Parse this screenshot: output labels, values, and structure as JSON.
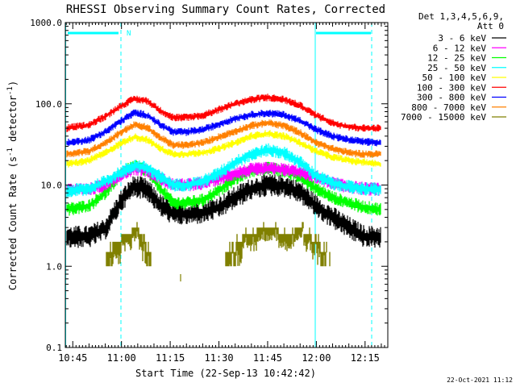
{
  "chart_data": {
    "type": "line",
    "title": "RHESSI Observing Summary Count Rates, Corrected",
    "xlabel": "Start Time (22-Sep-13 10:42:42)",
    "ylabel": "Corrected Count Rate (s⁻¹ detector⁻¹)",
    "yscale": "log",
    "ylim": [
      0.1,
      1000
    ],
    "xlim": [
      "10:42:42",
      "12:22:00"
    ],
    "x_ticks": [
      "10:45",
      "11:00",
      "11:15",
      "11:30",
      "11:45",
      "12:00",
      "12:15"
    ],
    "y_ticks": [
      "0.1",
      "1.0",
      "10.0",
      "100.0",
      "1000.0"
    ],
    "legend_header": [
      "Det 1,3,4,5,6,9,",
      "Att 0"
    ],
    "legend_position": "right",
    "flag_marker": "N",
    "series": [
      {
        "name": "3 - 6 keV",
        "color": "#000000",
        "x": [
          "10:43",
          "10:50",
          "10:55",
          "11:00",
          "11:04",
          "11:08",
          "11:12",
          "11:16",
          "11:20",
          "11:25",
          "11:30",
          "11:35",
          "11:40",
          "11:45",
          "11:50",
          "11:55",
          "12:00",
          "12:05",
          "12:10",
          "12:15",
          "12:20"
        ],
        "values": [
          2.3,
          2.3,
          2.9,
          6.5,
          9.8,
          8.7,
          5.6,
          4.4,
          4.4,
          4.6,
          5.3,
          7.0,
          9.0,
          10.0,
          9.8,
          8.2,
          5.5,
          4.0,
          3.0,
          2.3,
          2.3
        ]
      },
      {
        "name": "6 - 12 keV",
        "color": "#ff00ff",
        "x": [
          "10:43",
          "10:50",
          "10:55",
          "11:00",
          "11:04",
          "11:08",
          "11:12",
          "11:16",
          "11:20",
          "11:25",
          "11:30",
          "11:35",
          "11:40",
          "11:45",
          "11:50",
          "11:55",
          "12:00",
          "12:05",
          "12:10",
          "12:15",
          "12:20"
        ],
        "values": [
          8.8,
          8.8,
          10.0,
          13.5,
          16.0,
          15.0,
          12.0,
          10.0,
          10.0,
          10.5,
          12.0,
          14.0,
          15.5,
          16.0,
          15.5,
          14.5,
          12.5,
          10.5,
          9.5,
          9.0,
          8.8
        ]
      },
      {
        "name": "12 - 25 keV",
        "color": "#00ff00",
        "x": [
          "10:43",
          "10:50",
          "10:55",
          "11:00",
          "11:04",
          "11:08",
          "11:12",
          "11:16",
          "11:20",
          "11:25",
          "11:30",
          "11:35",
          "11:40",
          "11:45",
          "11:50",
          "11:55",
          "12:00",
          "12:05",
          "12:10",
          "12:15",
          "12:20"
        ],
        "values": [
          5.0,
          5.5,
          8.0,
          14.0,
          17.0,
          15.0,
          9.0,
          6.0,
          6.0,
          6.5,
          8.5,
          12.0,
          15.0,
          16.0,
          15.0,
          12.5,
          9.0,
          7.0,
          6.0,
          5.3,
          5.0
        ]
      },
      {
        "name": "25 - 50 keV",
        "color": "#00ffff",
        "x": [
          "10:43",
          "10:50",
          "10:55",
          "11:00",
          "11:04",
          "11:08",
          "11:12",
          "11:16",
          "11:20",
          "11:25",
          "11:30",
          "11:35",
          "11:40",
          "11:45",
          "11:50",
          "11:55",
          "12:00",
          "12:05",
          "12:10",
          "12:15",
          "12:20"
        ],
        "values": [
          8.5,
          9.0,
          11.0,
          14.5,
          17.5,
          16.0,
          12.5,
          10.0,
          10.0,
          11.0,
          14.0,
          19.0,
          24.0,
          27.0,
          25.0,
          19.0,
          13.0,
          10.5,
          9.5,
          9.0,
          8.8
        ]
      },
      {
        "name": "50 - 100 keV",
        "color": "#ffff00",
        "x": [
          "10:43",
          "10:50",
          "10:55",
          "11:00",
          "11:04",
          "11:08",
          "11:12",
          "11:16",
          "11:20",
          "11:25",
          "11:30",
          "11:35",
          "11:40",
          "11:45",
          "11:50",
          "11:55",
          "12:00",
          "12:05",
          "12:10",
          "12:15",
          "12:20"
        ],
        "values": [
          18,
          20,
          25,
          33,
          39,
          36,
          28,
          24,
          24,
          25,
          28,
          33,
          40,
          43,
          40,
          33,
          26,
          22,
          20,
          19,
          18
        ]
      },
      {
        "name": "100 - 300 keV",
        "color": "#ff0000",
        "x": [
          "10:43",
          "10:50",
          "10:55",
          "11:00",
          "11:04",
          "11:08",
          "11:12",
          "11:16",
          "11:20",
          "11:25",
          "11:30",
          "11:35",
          "11:40",
          "11:45",
          "11:50",
          "11:55",
          "12:00",
          "12:05",
          "12:10",
          "12:15",
          "12:20"
        ],
        "values": [
          50,
          55,
          70,
          95,
          115,
          108,
          82,
          68,
          68,
          72,
          85,
          100,
          113,
          120,
          113,
          95,
          72,
          58,
          52,
          50,
          50
        ]
      },
      {
        "name": "300 - 800 keV",
        "color": "#0000ff",
        "x": [
          "10:43",
          "10:50",
          "10:55",
          "11:00",
          "11:04",
          "11:08",
          "11:12",
          "11:16",
          "11:20",
          "11:25",
          "11:30",
          "11:35",
          "11:40",
          "11:45",
          "11:50",
          "11:55",
          "12:00",
          "12:05",
          "12:10",
          "12:15",
          "12:20"
        ],
        "values": [
          33,
          36,
          45,
          62,
          78,
          72,
          55,
          45,
          45,
          48,
          56,
          66,
          73,
          77,
          73,
          62,
          48,
          40,
          36,
          34,
          33
        ]
      },
      {
        "name": "800 - 7000 keV",
        "color": "#ff8000",
        "x": [
          "10:43",
          "10:50",
          "10:55",
          "11:00",
          "11:04",
          "11:08",
          "11:12",
          "11:16",
          "11:20",
          "11:25",
          "11:30",
          "11:35",
          "11:40",
          "11:45",
          "11:50",
          "11:55",
          "12:00",
          "12:05",
          "12:10",
          "12:15",
          "12:20"
        ],
        "values": [
          24,
          26,
          33,
          45,
          55,
          51,
          38,
          31,
          31,
          33,
          39,
          46,
          54,
          58,
          54,
          44,
          33,
          28,
          25,
          24,
          24
        ]
      },
      {
        "name": "7000 - 15000 keV",
        "color": "#808000",
        "x": [
          "10:43",
          "10:51",
          "10:54",
          "10:58",
          "11:05",
          "11:07",
          "11:10",
          "11:20",
          "11:30",
          "11:34",
          "11:38",
          "11:45",
          "11:52",
          "11:55",
          "12:00",
          "12:02",
          "12:05",
          "12:10",
          "12:20"
        ],
        "values": [
          null,
          null,
          1.0,
          2.0,
          3.0,
          2.0,
          1.0,
          null,
          1.0,
          1.5,
          2.5,
          3.0,
          2.5,
          3.0,
          2.0,
          1.5,
          1.0,
          null,
          null
        ]
      }
    ]
  }
}
